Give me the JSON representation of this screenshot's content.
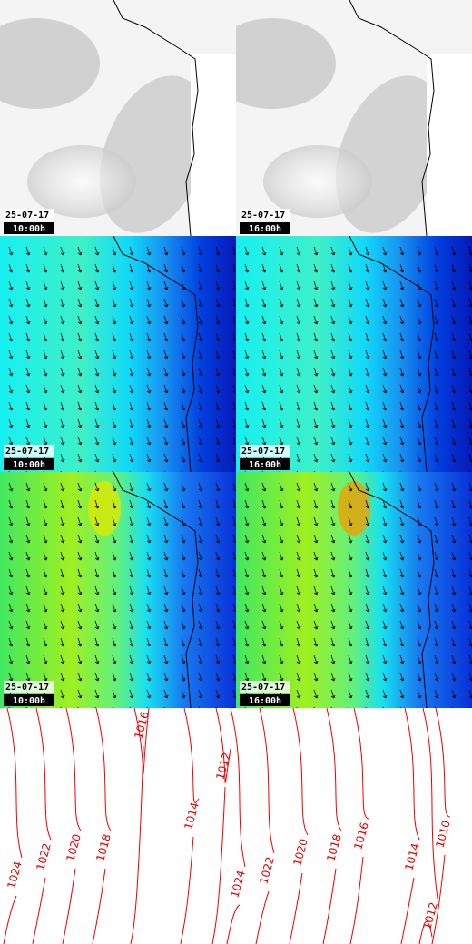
{
  "panels": [
    {
      "date": "25-07-17",
      "time": "10:00h"
    },
    {
      "date": "25-07-17",
      "time": "16:00h"
    },
    {
      "date": "25-07-17",
      "time": "10:00h"
    },
    {
      "date": "25-07-17",
      "time": "16:00h"
    },
    {
      "date": "25-07-17",
      "time": "10:00h"
    },
    {
      "date": "25-07-17",
      "time": "16:00h"
    }
  ],
  "isobars": {
    "left": [
      "1024",
      "1022",
      "1020",
      "1018",
      "1016",
      "1014",
      "1012"
    ],
    "right": [
      "1024",
      "1022",
      "1020",
      "1018",
      "1016",
      "1014",
      "1010",
      "1012"
    ]
  }
}
